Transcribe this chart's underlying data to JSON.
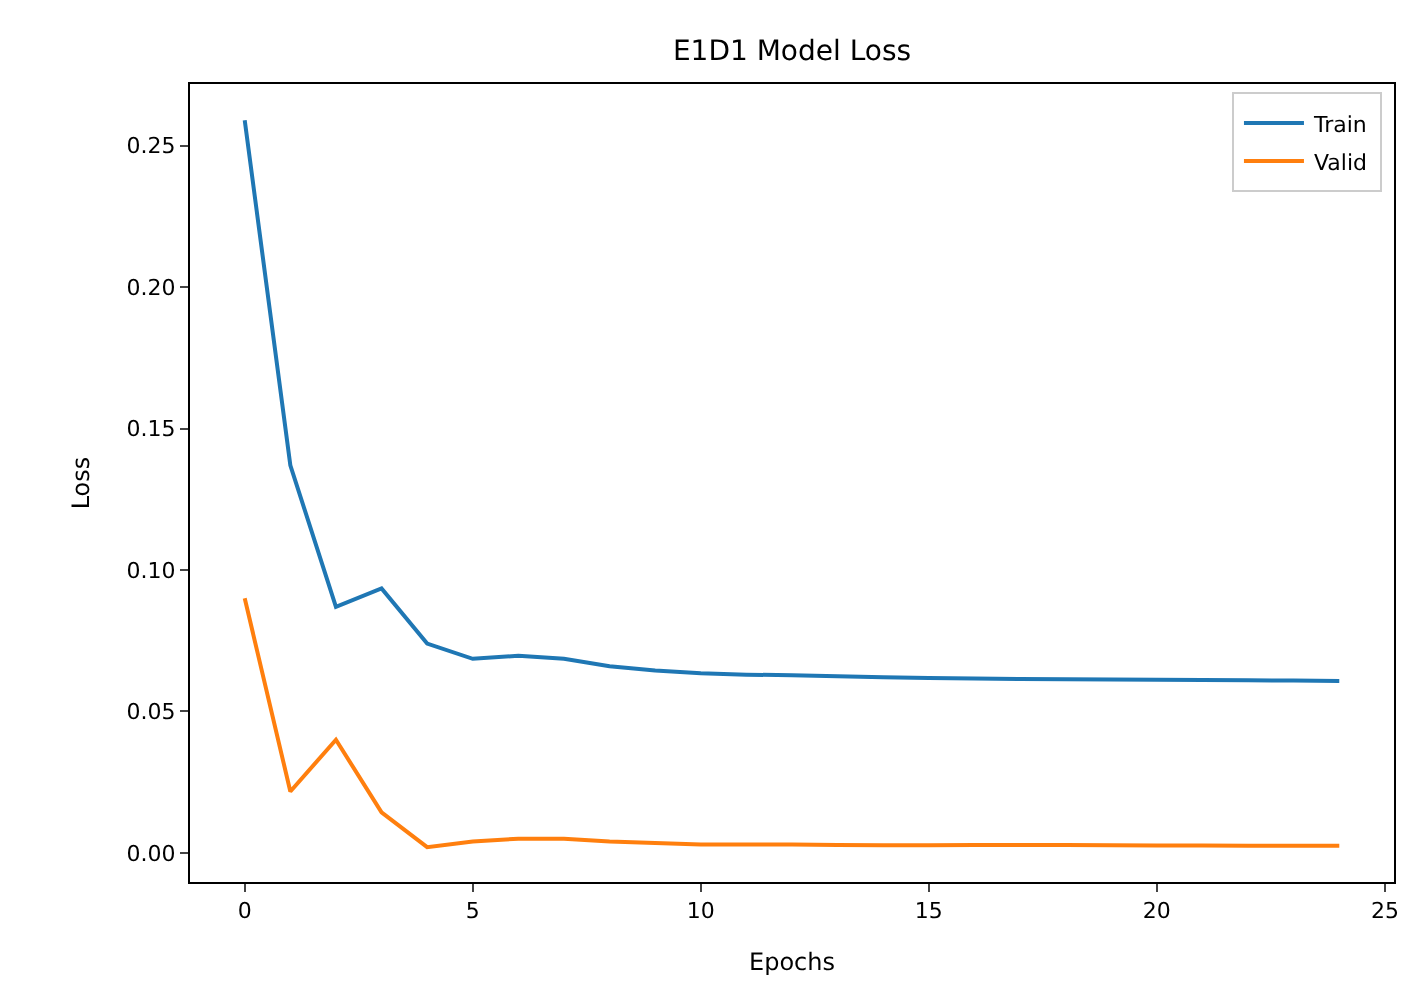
{
  "chart_data": {
    "type": "line",
    "title": "E1D1 Model Loss",
    "xlabel": "Epochs",
    "ylabel": "Loss",
    "x": [
      0,
      1,
      2,
      3,
      4,
      5,
      6,
      7,
      8,
      9,
      10,
      11,
      12,
      13,
      14,
      15,
      16,
      17,
      18,
      19,
      20,
      21,
      22,
      23,
      24
    ],
    "series": [
      {
        "name": "Train",
        "color": "#1f77b4",
        "values": [
          0.259,
          0.137,
          0.087,
          0.0935,
          0.074,
          0.0686,
          0.0697,
          0.0686,
          0.066,
          0.0645,
          0.0635,
          0.063,
          0.0628,
          0.0624,
          0.0621,
          0.0618,
          0.0616,
          0.0615,
          0.0614,
          0.0613,
          0.0612,
          0.0611,
          0.061,
          0.0609,
          0.0608
        ]
      },
      {
        "name": "Valid",
        "color": "#ff7f0e",
        "values": [
          0.09,
          0.0217,
          0.04,
          0.0143,
          0.002,
          0.004,
          0.005,
          0.005,
          0.004,
          0.0035,
          0.003,
          0.003,
          0.003,
          0.0028,
          0.0027,
          0.0027,
          0.0028,
          0.0028,
          0.0028,
          0.0027,
          0.0026,
          0.0026,
          0.0025,
          0.0025,
          0.0025
        ]
      }
    ],
    "xlim": [
      -1.2,
      25.2
    ],
    "xticks": [
      0,
      5,
      10,
      15,
      20,
      25
    ],
    "ylim": [
      -0.0103,
      0.2718
    ],
    "yticks": [
      {
        "value": 0,
        "label": "0.00"
      },
      {
        "value": 0.05,
        "label": "0.05"
      },
      {
        "value": 0.1,
        "label": "0.10"
      },
      {
        "value": 0.15,
        "label": "0.15"
      },
      {
        "value": 0.2,
        "label": "0.20"
      },
      {
        "value": 0.25,
        "label": "0.25"
      }
    ],
    "legend": "top right",
    "marker": "none",
    "line_style": "solid"
  }
}
